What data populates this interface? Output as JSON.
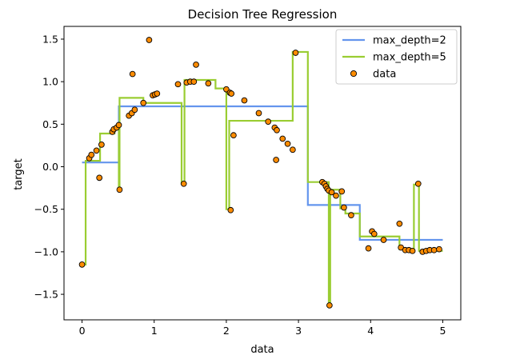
{
  "chart_data": {
    "type": "scatter",
    "title": "Decision Tree Regression",
    "xlabel": "data",
    "ylabel": "target",
    "xlim": [
      -0.25,
      5.25
    ],
    "ylim": [
      -1.8,
      1.65
    ],
    "xticks": [
      0,
      1,
      2,
      3,
      4,
      5
    ],
    "yticks": [
      -1.5,
      -1.0,
      -0.5,
      0.0,
      0.5,
      1.0,
      1.5
    ],
    "xtick_labels": [
      "0",
      "1",
      "2",
      "3",
      "4",
      "5"
    ],
    "ytick_labels": [
      "−1.5",
      "−1.0",
      "−0.5",
      "0.0",
      "0.5",
      "1.0",
      "1.5"
    ],
    "legend_position": "top-right",
    "grid": false,
    "series": [
      {
        "name": "max_depth=2",
        "kind": "step-line",
        "color": "#6495ED",
        "segments": [
          {
            "x_start": 0.0,
            "x_end": 0.51,
            "y": 0.05
          },
          {
            "x_start": 0.51,
            "x_end": 3.13,
            "y": 0.71
          },
          {
            "x_start": 3.13,
            "x_end": 3.85,
            "y": -0.45
          },
          {
            "x_start": 3.85,
            "x_end": 5.0,
            "y": -0.86
          }
        ]
      },
      {
        "name": "max_depth=5",
        "kind": "step-line",
        "color": "#9ACD32",
        "points": [
          [
            0.0,
            -1.15
          ],
          [
            0.05,
            -1.15
          ],
          [
            0.05,
            0.07
          ],
          [
            0.25,
            0.07
          ],
          [
            0.25,
            0.39
          ],
          [
            0.45,
            0.39
          ],
          [
            0.45,
            0.47
          ],
          [
            0.51,
            0.47
          ],
          [
            0.51,
            -0.26
          ],
          [
            0.52,
            -0.26
          ],
          [
            0.52,
            0.81
          ],
          [
            0.85,
            0.81
          ],
          [
            0.85,
            0.75
          ],
          [
            1.38,
            0.75
          ],
          [
            1.38,
            -0.2
          ],
          [
            1.42,
            -0.2
          ],
          [
            1.42,
            1.02
          ],
          [
            1.85,
            1.02
          ],
          [
            1.85,
            0.92
          ],
          [
            2.0,
            0.92
          ],
          [
            2.0,
            -0.5
          ],
          [
            2.04,
            -0.5
          ],
          [
            2.04,
            0.54
          ],
          [
            2.92,
            0.54
          ],
          [
            2.92,
            1.35
          ],
          [
            3.13,
            1.35
          ],
          [
            3.13,
            -0.18
          ],
          [
            3.42,
            -0.18
          ],
          [
            3.42,
            -1.63
          ],
          [
            3.44,
            -1.63
          ],
          [
            3.44,
            -0.27
          ],
          [
            3.58,
            -0.27
          ],
          [
            3.58,
            -0.49
          ],
          [
            3.65,
            -0.49
          ],
          [
            3.65,
            -0.55
          ],
          [
            3.85,
            -0.55
          ],
          [
            3.85,
            -0.82
          ],
          [
            4.4,
            -0.82
          ],
          [
            4.4,
            -0.97
          ],
          [
            4.6,
            -0.97
          ],
          [
            4.6,
            -0.21
          ],
          [
            4.67,
            -0.21
          ],
          [
            4.67,
            -0.99
          ],
          [
            5.0,
            -0.99
          ]
        ]
      },
      {
        "name": "data",
        "kind": "scatter",
        "color": "#FF8C00",
        "points": [
          [
            0.0,
            -1.15
          ],
          [
            0.1,
            0.1
          ],
          [
            0.13,
            0.14
          ],
          [
            0.2,
            0.19
          ],
          [
            0.24,
            -0.13
          ],
          [
            0.27,
            0.26
          ],
          [
            0.42,
            0.41
          ],
          [
            0.44,
            0.44
          ],
          [
            0.48,
            0.46
          ],
          [
            0.51,
            0.49
          ],
          [
            0.52,
            -0.27
          ],
          [
            0.65,
            0.6
          ],
          [
            0.69,
            0.63
          ],
          [
            0.7,
            1.09
          ],
          [
            0.73,
            0.67
          ],
          [
            0.85,
            0.75
          ],
          [
            0.93,
            1.49
          ],
          [
            0.98,
            0.84
          ],
          [
            1.01,
            0.85
          ],
          [
            1.04,
            0.86
          ],
          [
            1.33,
            0.97
          ],
          [
            1.41,
            -0.2
          ],
          [
            1.45,
            0.99
          ],
          [
            1.5,
            1.0
          ],
          [
            1.55,
            1.0
          ],
          [
            1.58,
            1.2
          ],
          [
            1.75,
            0.98
          ],
          [
            2.0,
            0.91
          ],
          [
            2.05,
            0.87
          ],
          [
            2.07,
            0.86
          ],
          [
            2.06,
            -0.51
          ],
          [
            2.1,
            0.37
          ],
          [
            2.25,
            0.78
          ],
          [
            2.45,
            0.63
          ],
          [
            2.58,
            0.53
          ],
          [
            2.67,
            0.46
          ],
          [
            2.7,
            0.43
          ],
          [
            2.78,
            0.33
          ],
          [
            2.85,
            0.27
          ],
          [
            2.92,
            0.2
          ],
          [
            2.69,
            0.08
          ],
          [
            2.96,
            1.34
          ],
          [
            3.33,
            -0.18
          ],
          [
            3.36,
            -0.2
          ],
          [
            3.38,
            -0.23
          ],
          [
            3.4,
            -0.26
          ],
          [
            3.42,
            -0.28
          ],
          [
            3.43,
            -1.63
          ],
          [
            3.46,
            -0.3
          ],
          [
            3.52,
            -0.34
          ],
          [
            3.6,
            -0.29
          ],
          [
            3.63,
            -0.48
          ],
          [
            3.73,
            -0.57
          ],
          [
            4.02,
            -0.76
          ],
          [
            4.05,
            -0.79
          ],
          [
            3.97,
            -0.96
          ],
          [
            4.18,
            -0.86
          ],
          [
            4.4,
            -0.67
          ],
          [
            4.42,
            -0.95
          ],
          [
            4.48,
            -0.98
          ],
          [
            4.53,
            -0.98
          ],
          [
            4.58,
            -0.99
          ],
          [
            4.66,
            -0.2
          ],
          [
            4.72,
            -1.0
          ],
          [
            4.77,
            -0.99
          ],
          [
            4.82,
            -0.98
          ],
          [
            4.88,
            -0.98
          ],
          [
            4.95,
            -0.97
          ]
        ]
      }
    ]
  }
}
